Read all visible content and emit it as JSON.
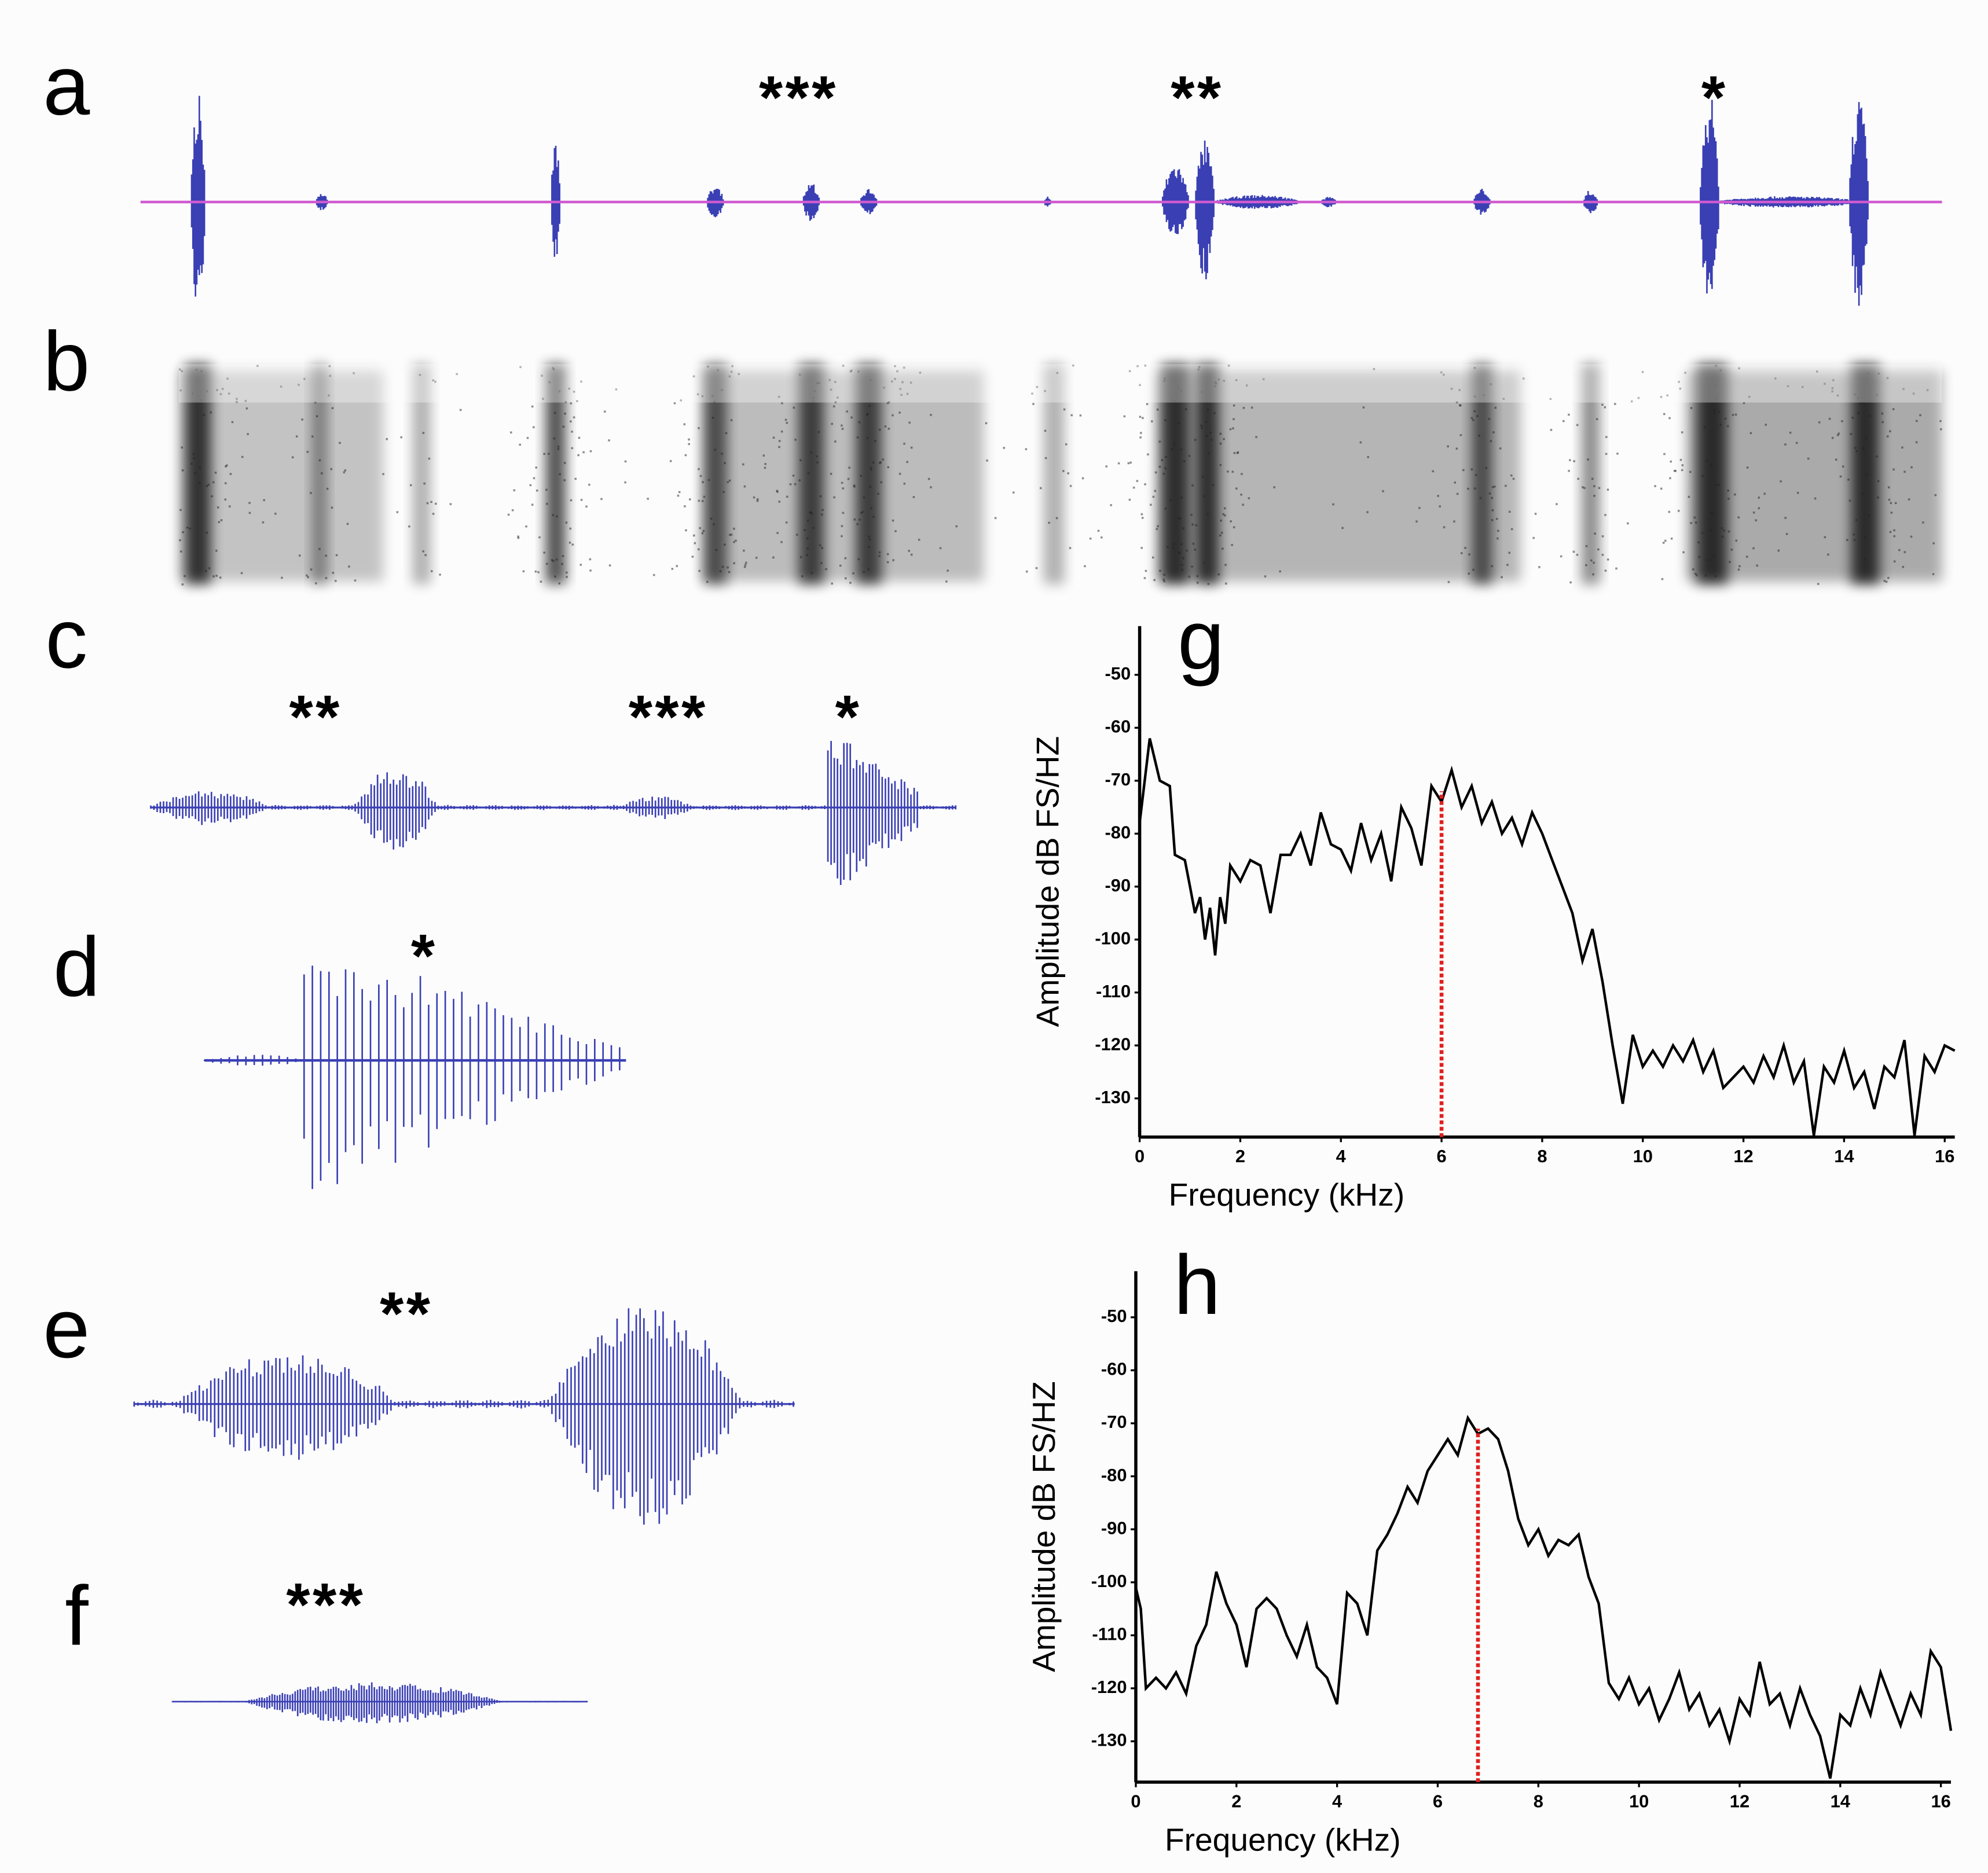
{
  "panels": [
    {
      "label": "a",
      "stars": [
        "***",
        "**",
        "*"
      ]
    },
    {
      "label": "b"
    },
    {
      "label": "c",
      "stars": [
        "**",
        "***",
        "*"
      ]
    },
    {
      "label": "d",
      "stars": [
        "*"
      ]
    },
    {
      "label": "e",
      "stars": [
        "**"
      ]
    },
    {
      "label": "f",
      "stars": [
        "***"
      ]
    }
  ],
  "chart_data": [
    {
      "type": "line",
      "title": "g",
      "xlabel": "Frequency (kHz)",
      "ylabel": "Amplitude dB FS/HZ",
      "xlim": [
        0,
        16.2
      ],
      "ylim": [
        -137.3,
        -40.8
      ],
      "xticks": [
        0,
        2,
        4,
        6,
        8,
        10,
        12,
        14,
        16
      ],
      "yticks": [
        -50,
        -60,
        -70,
        -80,
        -90,
        -100,
        -110,
        -120,
        -130
      ],
      "series": [
        {
          "color": "#000000",
          "x": [
            0,
            0.2,
            0.4,
            0.6,
            0.7,
            0.9,
            1,
            1.1,
            1.2,
            1.3,
            1.4,
            1.5,
            1.6,
            1.7,
            1.8,
            2,
            2.2,
            2.4,
            2.6,
            2.8,
            3,
            3.2,
            3.4,
            3.6,
            3.8,
            4,
            4.2,
            4.4,
            4.6,
            4.8,
            5,
            5.2,
            5.4,
            5.6,
            5.8,
            6,
            6.2,
            6.4,
            6.6,
            6.8,
            7,
            7.2,
            7.4,
            7.6,
            7.8,
            8,
            8.2,
            8.4,
            8.6,
            8.8,
            9,
            9.2,
            9.4,
            9.6,
            9.8,
            10,
            10.2,
            10.4,
            10.6,
            10.8,
            11,
            11.2,
            11.4,
            11.6,
            11.8,
            12,
            12.2,
            12.4,
            12.6,
            12.8,
            13,
            13.2,
            13.4,
            13.6,
            13.8,
            14,
            14.2,
            14.4,
            14.6,
            14.8,
            15,
            15.2,
            15.4,
            15.6,
            15.8,
            16,
            16.2
          ],
          "values": [
            -78,
            -62,
            -70,
            -71,
            -84,
            -85,
            -90,
            -95,
            -92,
            -100,
            -94,
            -103,
            -92,
            -97,
            -86,
            -89,
            -85,
            -86,
            -95,
            -84,
            -84,
            -80,
            -86,
            -76,
            -82,
            -83,
            -87,
            -78,
            -85,
            -80,
            -89,
            -75,
            -79,
            -86,
            -71,
            -74,
            -68,
            -75,
            -71,
            -78,
            -74,
            -80,
            -77,
            -82,
            -76,
            -80,
            -85,
            -90,
            -95,
            -104,
            -98,
            -108,
            -120,
            -131,
            -118,
            -124,
            -121,
            -124,
            -120,
            -123,
            -119,
            -125,
            -121,
            -128,
            -126,
            -124,
            -127,
            -122,
            -126,
            -120,
            -127,
            -123,
            -137,
            -124,
            -127,
            -121,
            -128,
            -125,
            -132,
            -124,
            -126,
            -119,
            -137,
            -122,
            -125,
            -120,
            -121
          ]
        }
      ],
      "marker": {
        "x": 6,
        "y": -72,
        "color": "#e02020"
      }
    },
    {
      "type": "line",
      "title": "h",
      "xlabel": "Frequency (kHz)",
      "ylabel": "Amplitude dB FS/HZ",
      "xlim": [
        0,
        16.2
      ],
      "ylim": [
        -137.7,
        -41.3
      ],
      "xticks": [
        0,
        2,
        4,
        6,
        8,
        10,
        12,
        14,
        16
      ],
      "yticks": [
        -50,
        -60,
        -70,
        -80,
        -90,
        -100,
        -110,
        -120,
        -130
      ],
      "series": [
        {
          "color": "#000000",
          "x": [
            0,
            0.1,
            0.2,
            0.4,
            0.6,
            0.8,
            1,
            1.2,
            1.4,
            1.6,
            1.8,
            2,
            2.2,
            2.4,
            2.6,
            2.8,
            3,
            3.2,
            3.4,
            3.6,
            3.8,
            4,
            4.2,
            4.4,
            4.6,
            4.8,
            5,
            5.2,
            5.4,
            5.6,
            5.8,
            6,
            6.2,
            6.4,
            6.6,
            6.8,
            7,
            7.2,
            7.4,
            7.6,
            7.8,
            8,
            8.2,
            8.4,
            8.6,
            8.8,
            9,
            9.2,
            9.4,
            9.6,
            9.8,
            10,
            10.2,
            10.4,
            10.6,
            10.8,
            11,
            11.2,
            11.4,
            11.6,
            11.8,
            12,
            12.2,
            12.4,
            12.6,
            12.8,
            13,
            13.2,
            13.4,
            13.6,
            13.8,
            14,
            14.2,
            14.4,
            14.6,
            14.8,
            15,
            15.2,
            15.4,
            15.6,
            15.8,
            16,
            16.2
          ],
          "values": [
            -101,
            -105,
            -120,
            -118,
            -120,
            -117,
            -121,
            -112,
            -108,
            -98,
            -104,
            -108,
            -116,
            -105,
            -103,
            -105,
            -110,
            -114,
            -108,
            -116,
            -118,
            -123,
            -102,
            -104,
            -110,
            -94,
            -91,
            -87,
            -82,
            -85,
            -79,
            -76,
            -73,
            -76,
            -69,
            -72,
            -71,
            -73,
            -79,
            -88,
            -93,
            -90,
            -95,
            -92,
            -93,
            -91,
            -99,
            -104,
            -119,
            -122,
            -118,
            -123,
            -120,
            -126,
            -122,
            -117,
            -124,
            -121,
            -127,
            -124,
            -130,
            -122,
            -125,
            -115,
            -123,
            -121,
            -127,
            -120,
            -125,
            -129,
            -137,
            -125,
            -127,
            -120,
            -125,
            -117,
            -122,
            -127,
            -121,
            -125,
            -113,
            -116,
            -128
          ]
        }
      ],
      "marker": {
        "x": 6.8,
        "y": -71,
        "color": "#e02020"
      }
    }
  ]
}
